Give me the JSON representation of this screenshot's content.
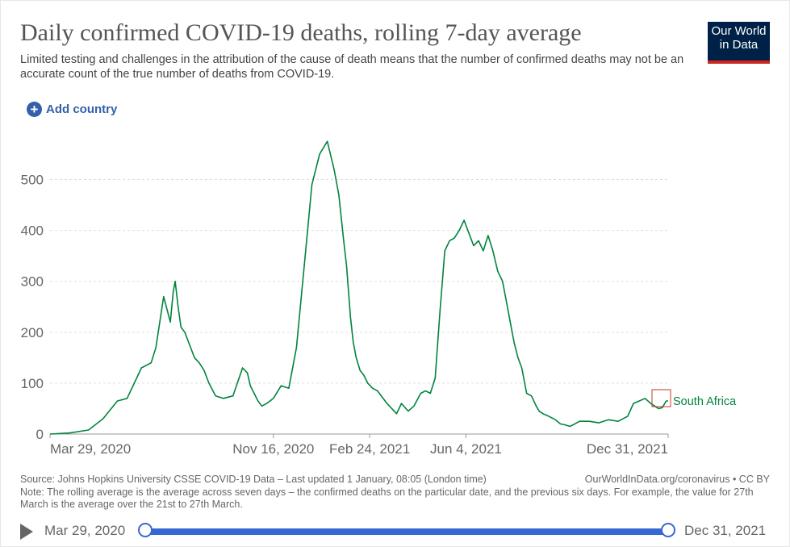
{
  "header": {
    "title": "Daily confirmed COVID-19 deaths, rolling 7-day average",
    "subtitle": "Limited testing and challenges in the attribution of the cause of death means that the number of confirmed deaths may not be an accurate count of the true number of deaths from COVID-19."
  },
  "logo": {
    "line1": "Our World",
    "line2": "in Data",
    "bg": "#002147",
    "accent": "#ce261e"
  },
  "controls": {
    "add_country_label": "Add country",
    "add_icon": "plus-circle-icon"
  },
  "footer": {
    "source": "Source: Johns Hopkins University CSSE COVID-19 Data – Last updated 1 January, 08:05 (London time)",
    "license": "OurWorldInData.org/coronavirus • CC BY",
    "note": "Note: The rolling average is the average across seven days – the confirmed deaths on the particular date, and the previous six days. For example, the value for 27th March is the average over the 21st to 27th March."
  },
  "timeline": {
    "start_label": "Mar 29, 2020",
    "end_label": "Dec 31, 2021",
    "play_icon": "play-icon",
    "start_fraction": 0,
    "end_fraction": 1
  },
  "chart_data": {
    "type": "line",
    "title": "Daily confirmed COVID-19 deaths, rolling 7-day average",
    "xlabel": "",
    "ylabel": "",
    "ylim": [
      0,
      550
    ],
    "yticks": [
      0,
      100,
      200,
      300,
      400,
      500
    ],
    "xtick_labels": [
      "Mar 29, 2020",
      "Nov 16, 2020",
      "Feb 24, 2021",
      "Jun 4, 2021",
      "Dec 31, 2021"
    ],
    "xtick_days": [
      0,
      232,
      332,
      432,
      642
    ],
    "xlim_days": [
      0,
      642
    ],
    "grid": true,
    "series": [
      {
        "name": "South Africa",
        "color": "#00843d",
        "x_days": [
          0,
          20,
          40,
          55,
          70,
          80,
          95,
          105,
          110,
          118,
          125,
          128,
          130,
          133,
          136,
          140,
          142,
          146,
          150,
          155,
          160,
          165,
          172,
          180,
          190,
          200,
          205,
          208,
          212,
          216,
          220,
          225,
          232,
          240,
          248,
          256,
          265,
          272,
          280,
          288,
          295,
          300,
          305,
          308,
          312,
          315,
          318,
          322,
          326,
          330,
          335,
          340,
          350,
          360,
          365,
          372,
          378,
          385,
          390,
          395,
          400,
          405,
          410,
          415,
          420,
          425,
          430,
          435,
          440,
          445,
          450,
          455,
          460,
          465,
          470,
          474,
          478,
          482,
          486,
          490,
          495,
          500,
          505,
          508,
          512,
          518,
          525,
          530,
          535,
          540,
          545,
          550,
          560,
          570,
          580,
          590,
          600,
          606,
          612,
          618,
          624,
          628,
          632,
          636,
          640,
          642
        ],
        "values": [
          0,
          2,
          8,
          30,
          65,
          70,
          130,
          140,
          170,
          270,
          220,
          280,
          300,
          250,
          210,
          200,
          190,
          170,
          150,
          140,
          125,
          100,
          75,
          70,
          75,
          130,
          120,
          95,
          80,
          65,
          55,
          60,
          70,
          95,
          90,
          170,
          350,
          490,
          550,
          575,
          520,
          470,
          380,
          330,
          230,
          180,
          150,
          125,
          115,
          100,
          90,
          85,
          60,
          40,
          60,
          45,
          55,
          80,
          85,
          80,
          110,
          240,
          360,
          380,
          385,
          400,
          420,
          395,
          370,
          380,
          360,
          390,
          360,
          320,
          300,
          260,
          220,
          180,
          150,
          130,
          80,
          75,
          55,
          45,
          40,
          35,
          28,
          20,
          18,
          15,
          20,
          25,
          25,
          22,
          28,
          25,
          35,
          60,
          65,
          70,
          60,
          55,
          50,
          52,
          65,
          65
        ]
      }
    ]
  }
}
